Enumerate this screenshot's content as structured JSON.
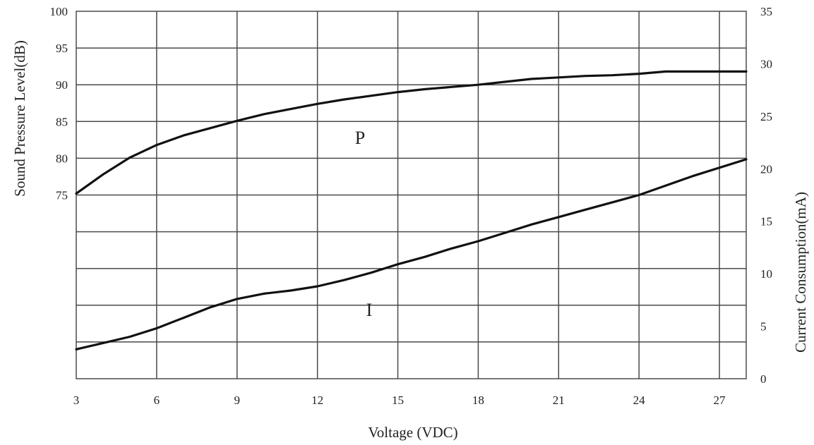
{
  "chart_data": {
    "type": "line",
    "xlabel": "Voltage (VDC)",
    "ylabel_left": "Sound Pressure Level(dB)",
    "ylabel_right": "Current Consumption(mA)",
    "x_ticks": [
      3,
      6,
      9,
      12,
      15,
      18,
      21,
      24,
      27
    ],
    "x_tick_labels": [
      "3",
      "6",
      "9",
      "12",
      "15",
      "18",
      "21",
      "24",
      "27"
    ],
    "xlim": [
      3,
      28
    ],
    "y_left_ticks": [
      75,
      80,
      85,
      90,
      95,
      100
    ],
    "y_left_tick_labels": [
      "75",
      "80",
      "85",
      "90",
      "95",
      "100"
    ],
    "y_left_lim": [
      50,
      100
    ],
    "y_right_ticks": [
      0,
      5,
      10,
      15,
      20,
      25,
      30,
      35
    ],
    "y_right_tick_labels": [
      "0",
      "5",
      "10",
      "15",
      "20",
      "25",
      "30",
      "35"
    ],
    "y_right_lim": [
      0,
      35
    ],
    "grid": true,
    "series": [
      {
        "name": "P",
        "axis": "left",
        "x": [
          3,
          4,
          5,
          6,
          7,
          8,
          9,
          10,
          11,
          12,
          13,
          14,
          15,
          16,
          17,
          18,
          19,
          20,
          21,
          22,
          23,
          24,
          25,
          26,
          27,
          28
        ],
        "y": [
          75.2,
          77.8,
          80.1,
          81.8,
          83.1,
          84.1,
          85.1,
          86.0,
          86.7,
          87.4,
          88.0,
          88.5,
          89.0,
          89.4,
          89.7,
          90.0,
          90.4,
          90.8,
          91.0,
          91.2,
          91.3,
          91.5,
          91.8,
          91.8,
          91.8,
          91.8
        ]
      },
      {
        "name": "I",
        "axis": "right",
        "x": [
          3,
          4,
          5,
          6,
          7,
          8,
          9,
          10,
          11,
          12,
          13,
          14,
          15,
          16,
          17,
          18,
          19,
          20,
          21,
          22,
          23,
          24,
          25,
          26,
          27,
          28
        ],
        "y": [
          2.8,
          3.4,
          4.0,
          4.8,
          5.8,
          6.8,
          7.6,
          8.1,
          8.4,
          8.8,
          9.4,
          10.1,
          10.9,
          11.6,
          12.4,
          13.1,
          13.9,
          14.7,
          15.4,
          16.1,
          16.8,
          17.5,
          18.4,
          19.3,
          20.1,
          20.9
        ]
      }
    ]
  },
  "colors": {
    "background": "#ffffff",
    "grid": "#4a4a4a",
    "line": "#111111",
    "text": "#222222"
  }
}
